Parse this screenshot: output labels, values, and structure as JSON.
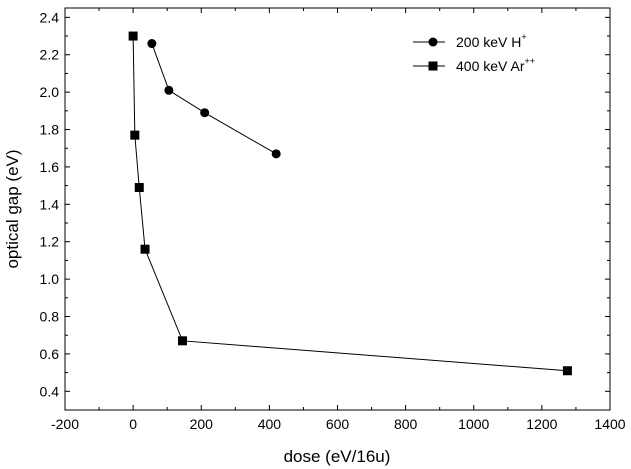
{
  "chart_data": {
    "type": "scatter",
    "title": "",
    "xlabel": "dose (eV/16u)",
    "ylabel": "optical gap (eV)",
    "xlim": [
      -200,
      1400
    ],
    "ylim": [
      0.3,
      2.45
    ],
    "xticks": [
      -200,
      0,
      200,
      400,
      600,
      800,
      1000,
      1200,
      1400
    ],
    "yticks": [
      0.4,
      0.6,
      0.8,
      1.0,
      1.2,
      1.4,
      1.6,
      1.8,
      2.0,
      2.2,
      2.4
    ],
    "legend_position": "top-right",
    "grid": false,
    "series": [
      {
        "name": "200 keV H",
        "name_sup": "+",
        "marker": "circle",
        "color": "#000000",
        "x": [
          55,
          105,
          210,
          420
        ],
        "y": [
          2.26,
          2.01,
          1.89,
          1.67
        ]
      },
      {
        "name": "400 keV Ar",
        "name_sup": "++",
        "marker": "square",
        "color": "#000000",
        "x": [
          0,
          5,
          18,
          35,
          145,
          1275
        ],
        "y": [
          2.3,
          1.77,
          1.49,
          1.16,
          0.67,
          0.51
        ]
      }
    ]
  }
}
